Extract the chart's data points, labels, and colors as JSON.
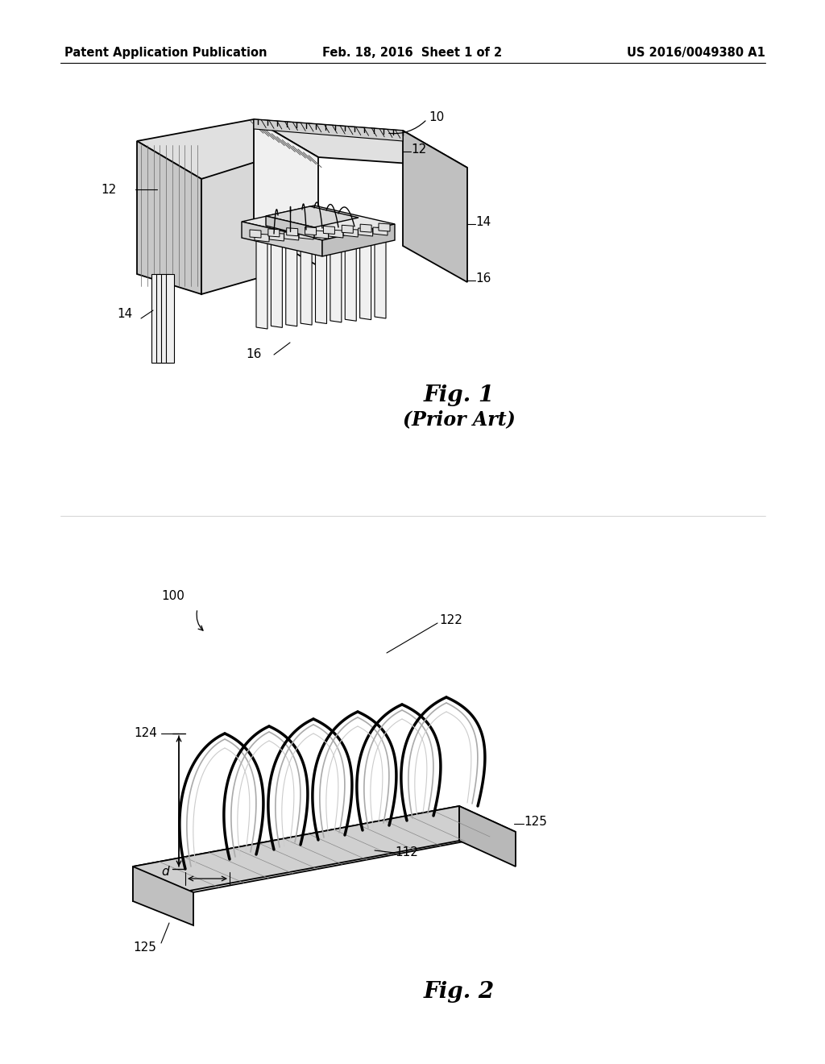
{
  "background_color": "#ffffff",
  "fig_width": 10.24,
  "fig_height": 13.2,
  "dpi": 100,
  "header": {
    "left": "Patent Application Publication",
    "center": "Feb. 18, 2016  Sheet 1 of 2",
    "right": "US 2016/0049380 A1",
    "fontsize": 10.5
  },
  "fig1_label": "Fig. 1",
  "fig1_sublabel": "(Prior Art)",
  "fig2_label": "Fig. 2"
}
